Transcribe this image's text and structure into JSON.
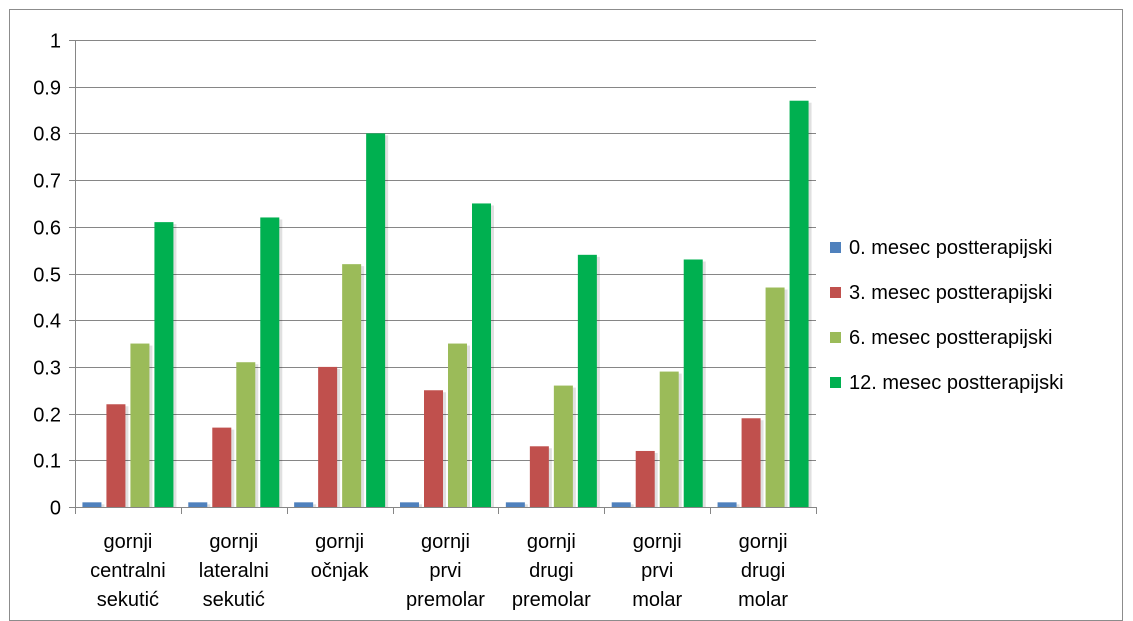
{
  "chart_data": {
    "type": "bar",
    "title": "",
    "xlabel": "",
    "ylabel": "",
    "ylim": [
      0,
      1
    ],
    "y_ticks": [
      "0",
      "0.1",
      "0.2",
      "0.3",
      "0.4",
      "0.5",
      "0.6",
      "0.7",
      "0.8",
      "0.9",
      "1"
    ],
    "grid": true,
    "legend_position": "right",
    "categories": [
      [
        "gornji",
        "centralni",
        "sekutić"
      ],
      [
        "gornji",
        "lateralni",
        "sekutić"
      ],
      [
        "gornji",
        "očnjak"
      ],
      [
        "gornji",
        "prvi",
        "premolar"
      ],
      [
        "gornji",
        "drugi",
        "premolar"
      ],
      [
        "gornji",
        "prvi",
        "molar"
      ],
      [
        "gornji",
        "drugi",
        "molar"
      ]
    ],
    "series": [
      {
        "name": "0. mesec postterapijski",
        "color": "#4F81BD",
        "values": [
          0.01,
          0.01,
          0.01,
          0.01,
          0.01,
          0.01,
          0.01
        ]
      },
      {
        "name": "3. mesec postterapijski",
        "color": "#C0504D",
        "values": [
          0.22,
          0.17,
          0.3,
          0.25,
          0.13,
          0.12,
          0.19
        ]
      },
      {
        "name": "6. mesec postterapijski",
        "color": "#9BBB59",
        "values": [
          0.35,
          0.31,
          0.52,
          0.35,
          0.26,
          0.29,
          0.47
        ]
      },
      {
        "name": "12. mesec postterapijski",
        "color": "#00B050",
        "values": [
          0.61,
          0.62,
          0.8,
          0.65,
          0.54,
          0.53,
          0.87
        ]
      }
    ]
  }
}
